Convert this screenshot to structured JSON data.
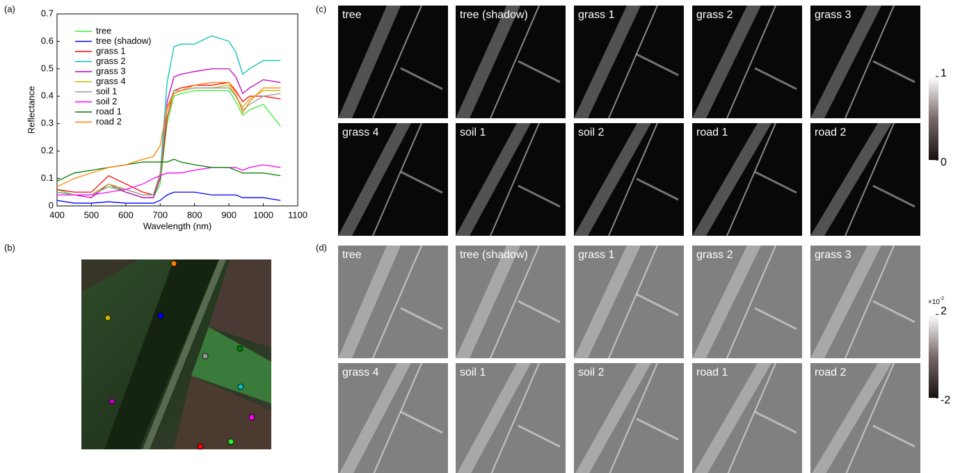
{
  "panel_labels": [
    "(a)",
    "(b)",
    "(c)",
    "(d)"
  ],
  "chart_data": {
    "type": "line",
    "x_label": "Wavelength (nm)",
    "y_label": "Reflectance",
    "x": [
      400,
      450,
      500,
      550,
      600,
      650,
      680,
      700,
      720,
      740,
      760,
      800,
      850,
      900,
      920,
      940,
      960,
      1000,
      1050
    ],
    "xlim": [
      400,
      1100
    ],
    "xticks": [
      400,
      500,
      600,
      700,
      800,
      900,
      1000,
      1100
    ],
    "ylim": [
      0,
      0.7
    ],
    "yticks": [
      0,
      0.1,
      0.2,
      0.3,
      0.4,
      0.5,
      0.6,
      0.7
    ],
    "legend": "upper-left",
    "series": [
      {
        "name": "tree",
        "color": "#33ee33",
        "values": [
          0.06,
          0.04,
          0.04,
          0.07,
          0.05,
          0.03,
          0.03,
          0.08,
          0.3,
          0.4,
          0.41,
          0.42,
          0.42,
          0.42,
          0.38,
          0.33,
          0.35,
          0.37,
          0.29
        ]
      },
      {
        "name": "tree (shadow)",
        "color": "#0000ff",
        "values": [
          0.02,
          0.01,
          0.01,
          0.015,
          0.01,
          0.01,
          0.01,
          0.02,
          0.04,
          0.05,
          0.05,
          0.05,
          0.04,
          0.04,
          0.04,
          0.03,
          0.03,
          0.03,
          0.02
        ]
      },
      {
        "name": "grass 1",
        "color": "#ff0000",
        "values": [
          0.06,
          0.05,
          0.05,
          0.11,
          0.08,
          0.05,
          0.04,
          0.1,
          0.32,
          0.42,
          0.43,
          0.44,
          0.44,
          0.45,
          0.42,
          0.38,
          0.4,
          0.4,
          0.39
        ]
      },
      {
        "name": "grass 2",
        "color": "#00bfbf",
        "values": [
          0.05,
          0.04,
          0.04,
          0.08,
          0.06,
          0.04,
          0.04,
          0.12,
          0.45,
          0.58,
          0.59,
          0.59,
          0.62,
          0.6,
          0.56,
          0.48,
          0.5,
          0.53,
          0.53
        ]
      },
      {
        "name": "grass 3",
        "color": "#bf00bf",
        "values": [
          0.05,
          0.04,
          0.03,
          0.08,
          0.05,
          0.03,
          0.03,
          0.1,
          0.38,
          0.47,
          0.48,
          0.49,
          0.5,
          0.5,
          0.47,
          0.41,
          0.43,
          0.46,
          0.45
        ]
      },
      {
        "name": "grass 4",
        "color": "#c8b400",
        "values": [
          0.05,
          0.04,
          0.04,
          0.08,
          0.06,
          0.04,
          0.04,
          0.12,
          0.35,
          0.41,
          0.42,
          0.43,
          0.43,
          0.44,
          0.4,
          0.36,
          0.39,
          0.42,
          0.42
        ]
      },
      {
        "name": "soil 1",
        "color": "#999999",
        "values": [
          0.05,
          0.04,
          0.04,
          0.07,
          0.06,
          0.04,
          0.04,
          0.11,
          0.36,
          0.42,
          0.42,
          0.43,
          0.43,
          0.43,
          0.4,
          0.35,
          0.37,
          0.4,
          0.41
        ]
      },
      {
        "name": "soil 2",
        "color": "#ff00ff",
        "values": [
          0.04,
          0.04,
          0.04,
          0.05,
          0.06,
          0.08,
          0.1,
          0.11,
          0.12,
          0.12,
          0.12,
          0.13,
          0.14,
          0.14,
          0.14,
          0.13,
          0.14,
          0.15,
          0.14
        ]
      },
      {
        "name": "road 1",
        "color": "#008000",
        "values": [
          0.09,
          0.12,
          0.13,
          0.14,
          0.15,
          0.16,
          0.16,
          0.16,
          0.16,
          0.17,
          0.16,
          0.15,
          0.14,
          0.14,
          0.13,
          0.12,
          0.12,
          0.12,
          0.11
        ]
      },
      {
        "name": "road 2",
        "color": "#ff8000",
        "values": [
          0.07,
          0.1,
          0.12,
          0.14,
          0.15,
          0.17,
          0.18,
          0.22,
          0.36,
          0.41,
          0.42,
          0.44,
          0.45,
          0.45,
          0.41,
          0.34,
          0.38,
          0.43,
          0.43
        ]
      }
    ]
  },
  "abundance_maps": {
    "labels": [
      "tree",
      "tree (shadow)",
      "grass 1",
      "grass 2",
      "grass 3",
      "grass 4",
      "soil 1",
      "soil 2",
      "road 1",
      "road 2"
    ],
    "colorbar_ticks": [
      0,
      1
    ]
  },
  "residual_maps": {
    "labels": [
      "tree",
      "tree (shadow)",
      "grass 1",
      "grass 2",
      "grass 3",
      "grass 4",
      "soil 1",
      "soil 2",
      "road 1",
      "road 2"
    ],
    "colorbar_ticks": [
      -2,
      2
    ],
    "colorbar_scale": {
      "base": "×10",
      "exponent": "-2"
    }
  }
}
